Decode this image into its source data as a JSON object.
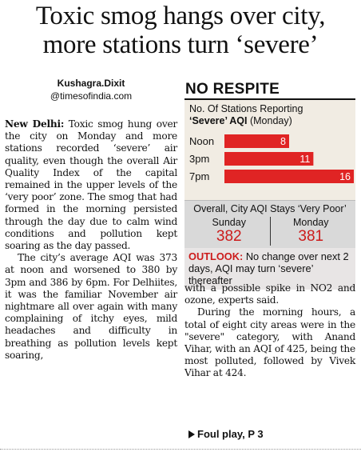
{
  "headline": {
    "line1": "Toxic smog hangs over city,",
    "line2": "more stations turn ‘severe’"
  },
  "byline": {
    "author": "Kushagra.Dixit",
    "handle": "@timesofindia.com"
  },
  "article": {
    "dateline": "New Delhi:",
    "para1": "Toxic smog hung over the city on Monday and more stations recorded ‘severe’ air quality, even though the overall Air Quality Index of the capital remained in the upper levels of the ‘very poor’ zone. The smog that had formed in the morning persisted through the day due to calm wind conditions and pollution kept soaring as the day passed.",
    "para2": "The city’s average AQI was 373 at noon and worsened to 380 by 3pm and 386 by 6pm. For Delhiites, it was the familiar November air nightmare all over again with many complaining of itchy eyes, mild headaches and difficulty in breathing as pollution levels kept soaring,",
    "para3": "with a possible spike in NO2 and ozone, experts said.",
    "para4": "During the morning hours, a total of eight city areas were in the \"severe\" category, with Anand Vihar, with an AQI of 425, being the most polluted, followed by Vivek Vihar at 424.",
    "continuation": "Foul play, P 3"
  },
  "infobox": {
    "title": "NO RESPITE",
    "chart_label_prefix": "No. Of Stations Reporting",
    "chart_label_highlight": "‘Severe’ AQI",
    "chart_label_suffix": "(Monday)",
    "summary_title": "Overall, City AQI Stays ‘Very Poor’",
    "days": [
      {
        "name": "Sunday",
        "value": "382"
      },
      {
        "name": "Monday",
        "value": "381"
      }
    ],
    "outlook_label": "OUTLOOK:",
    "outlook_text": "No change over next 2 days, AQI may turn ‘severe’ thereafter"
  },
  "chart_data": {
    "type": "bar",
    "orientation": "horizontal",
    "categories": [
      "Noon",
      "3pm",
      "7pm"
    ],
    "values": [
      8,
      11,
      16
    ],
    "title": "No. Of Stations Reporting ‘Severe’ AQI (Monday)",
    "bar_color": "#e02424",
    "xlim": [
      0,
      16
    ]
  }
}
